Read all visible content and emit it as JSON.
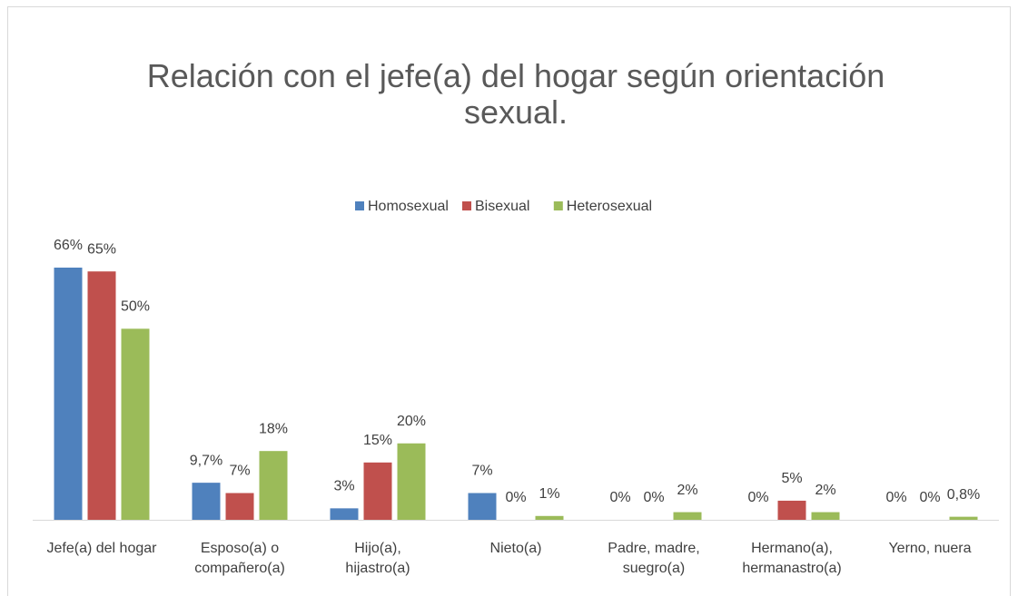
{
  "chart_data": {
    "type": "bar",
    "title": "Relación con el jefe(a) del hogar según orientación sexual.",
    "categories": [
      "Jefe(a) del hogar",
      "Esposo(a) o compañero(a)",
      "Hijo(a), hijastro(a)",
      "Nieto(a)",
      "Padre, madre, suegro(a)",
      "Hermano(a), hermanastro(a)",
      "Yerno, nuera"
    ],
    "series": [
      {
        "name": "Homosexual",
        "color": "#4f81bd",
        "values": [
          66,
          9.7,
          3,
          7,
          0,
          0,
          0
        ],
        "value_labels": [
          "66%",
          "9,7%",
          "3%",
          "7%",
          "0%",
          "0%",
          "0%"
        ]
      },
      {
        "name": "Bisexual",
        "color": "#c0504d",
        "values": [
          65,
          7,
          15,
          0,
          0,
          5,
          0
        ],
        "value_labels": [
          "65%",
          "7%",
          "15%",
          "0%",
          "0%",
          "5%",
          "0%"
        ]
      },
      {
        "name": "Heterosexual",
        "color": "#9bbb59",
        "values": [
          50,
          18,
          20,
          1,
          2,
          2,
          0.8
        ],
        "value_labels": [
          "50%",
          "18%",
          "20%",
          "1%",
          "2%",
          "2%",
          "0,8%"
        ]
      }
    ],
    "legend": "top"
  }
}
